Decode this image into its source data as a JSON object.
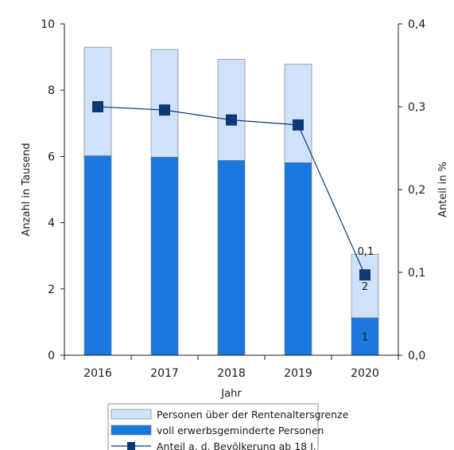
{
  "chart_data": {
    "type": "bar",
    "categories": [
      "2016",
      "2017",
      "2018",
      "2019",
      "2020"
    ],
    "xlabel": "Jahr",
    "ylabel": "Anzahl in Tausend",
    "y2label": "Anteil in %",
    "ylim": [
      0,
      10
    ],
    "y2lim": [
      0,
      0.4
    ],
    "yticks": [
      "0",
      "2",
      "4",
      "6",
      "8",
      "10"
    ],
    "y2ticks": [
      "0,0",
      "0,1",
      "0,2",
      "0,3",
      "0,4"
    ],
    "stacked": true,
    "grid": false,
    "legend_position": "bottom",
    "series": [
      {
        "name": "voll erwerbsgeminderte Personen",
        "type": "bar",
        "axis": "left",
        "color": "#1a78e0",
        "values": [
          6.02,
          5.98,
          5.88,
          5.81,
          1.13
        ],
        "data_labels": [
          "",
          "",
          "",
          "",
          "1"
        ]
      },
      {
        "name": "Personen über der Rentenaltersgrenze",
        "type": "bar",
        "axis": "left",
        "color": "#cfe2fa",
        "values": [
          3.28,
          3.25,
          3.05,
          2.97,
          1.92
        ],
        "data_labels": [
          "",
          "",
          "",
          "",
          "2"
        ]
      },
      {
        "name": "Anteil a. d. Bevölkerung ab 18 J.",
        "type": "line",
        "axis": "right",
        "color": "#0b3a75",
        "values": [
          0.3,
          0.296,
          0.284,
          0.278,
          0.097
        ],
        "data_labels": [
          "",
          "",
          "",
          "",
          "0,1"
        ]
      }
    ]
  }
}
